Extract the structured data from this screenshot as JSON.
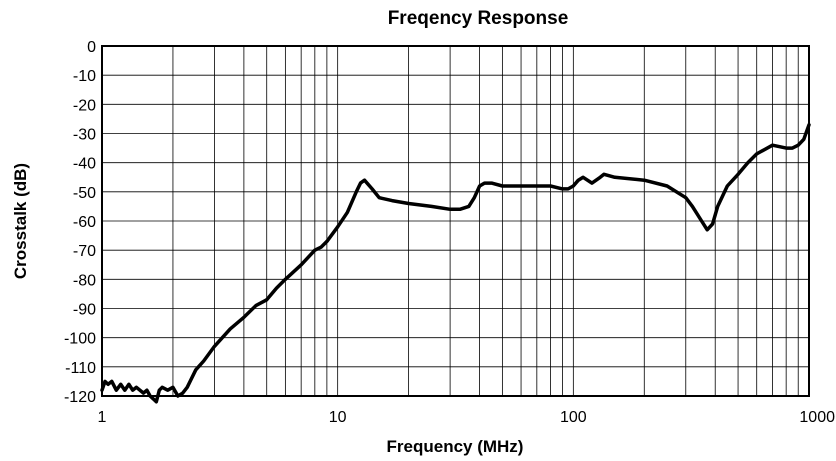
{
  "chart_data": {
    "type": "line",
    "title": "Freqency Response",
    "xlabel": "Frequency (MHz)",
    "ylabel": "Crosstalk (dB)",
    "xscale": "log",
    "xlim": [
      1,
      1000
    ],
    "ylim": [
      -120,
      0
    ],
    "grid": true,
    "x_ticks": [
      "1",
      "10",
      "100",
      "1000"
    ],
    "y_ticks": [
      "0",
      "-10",
      "-20",
      "-30",
      "-40",
      "-50",
      "-60",
      "-70",
      "-80",
      "-90",
      "-100",
      "-110",
      "-120"
    ],
    "line_color": "#000000",
    "series": [
      {
        "x": [
          1.0,
          1.03,
          1.06,
          1.1,
          1.15,
          1.2,
          1.25,
          1.3,
          1.35,
          1.4,
          1.5,
          1.55,
          1.6,
          1.65,
          1.7,
          1.75,
          1.8,
          1.9,
          2.0,
          2.1,
          2.2,
          2.3,
          2.5,
          2.7,
          3.0,
          3.5,
          4.0,
          4.5,
          5.0,
          5.5,
          6.0,
          7.0,
          8.0,
          8.5,
          9.0,
          10.0,
          11.0,
          12.0,
          12.5,
          13.0,
          14.0,
          15.0,
          17.0,
          20.0,
          25.0,
          30.0,
          33.0,
          36.0,
          38.0,
          40.0,
          42.0,
          45.0,
          50.0,
          60.0,
          80.0,
          90.0,
          95.0,
          100.0,
          105.0,
          110.0,
          120.0,
          130.0,
          135.0,
          150.0,
          200.0,
          250.0,
          300.0,
          320.0,
          350.0,
          370.0,
          390.0,
          410.0,
          450.0,
          500.0,
          550.0,
          600.0,
          700.0,
          800.0,
          850.0,
          900.0,
          950.0,
          1000.0
        ],
        "y": [
          -118,
          -115,
          -116,
          -115,
          -118,
          -116,
          -118,
          -116,
          -118,
          -117,
          -119,
          -118,
          -120,
          -121,
          -122,
          -118,
          -117,
          -118,
          -117,
          -120,
          -119,
          -117,
          -111,
          -108,
          -103,
          -97,
          -93,
          -89,
          -87,
          -83,
          -80,
          -75,
          -70,
          -69,
          -67,
          -62,
          -57,
          -50,
          -47,
          -46,
          -49,
          -52,
          -53,
          -54,
          -55,
          -56,
          -56,
          -55,
          -52,
          -48,
          -47,
          -47,
          -48,
          -48,
          -48,
          -49,
          -49,
          -48,
          -46,
          -45,
          -47,
          -45,
          -44,
          -45,
          -46,
          -48,
          -52,
          -55,
          -60,
          -63,
          -61,
          -55,
          -48,
          -44,
          -40,
          -37,
          -34,
          -35,
          -35,
          -34,
          -32,
          -27
        ]
      }
    ]
  }
}
